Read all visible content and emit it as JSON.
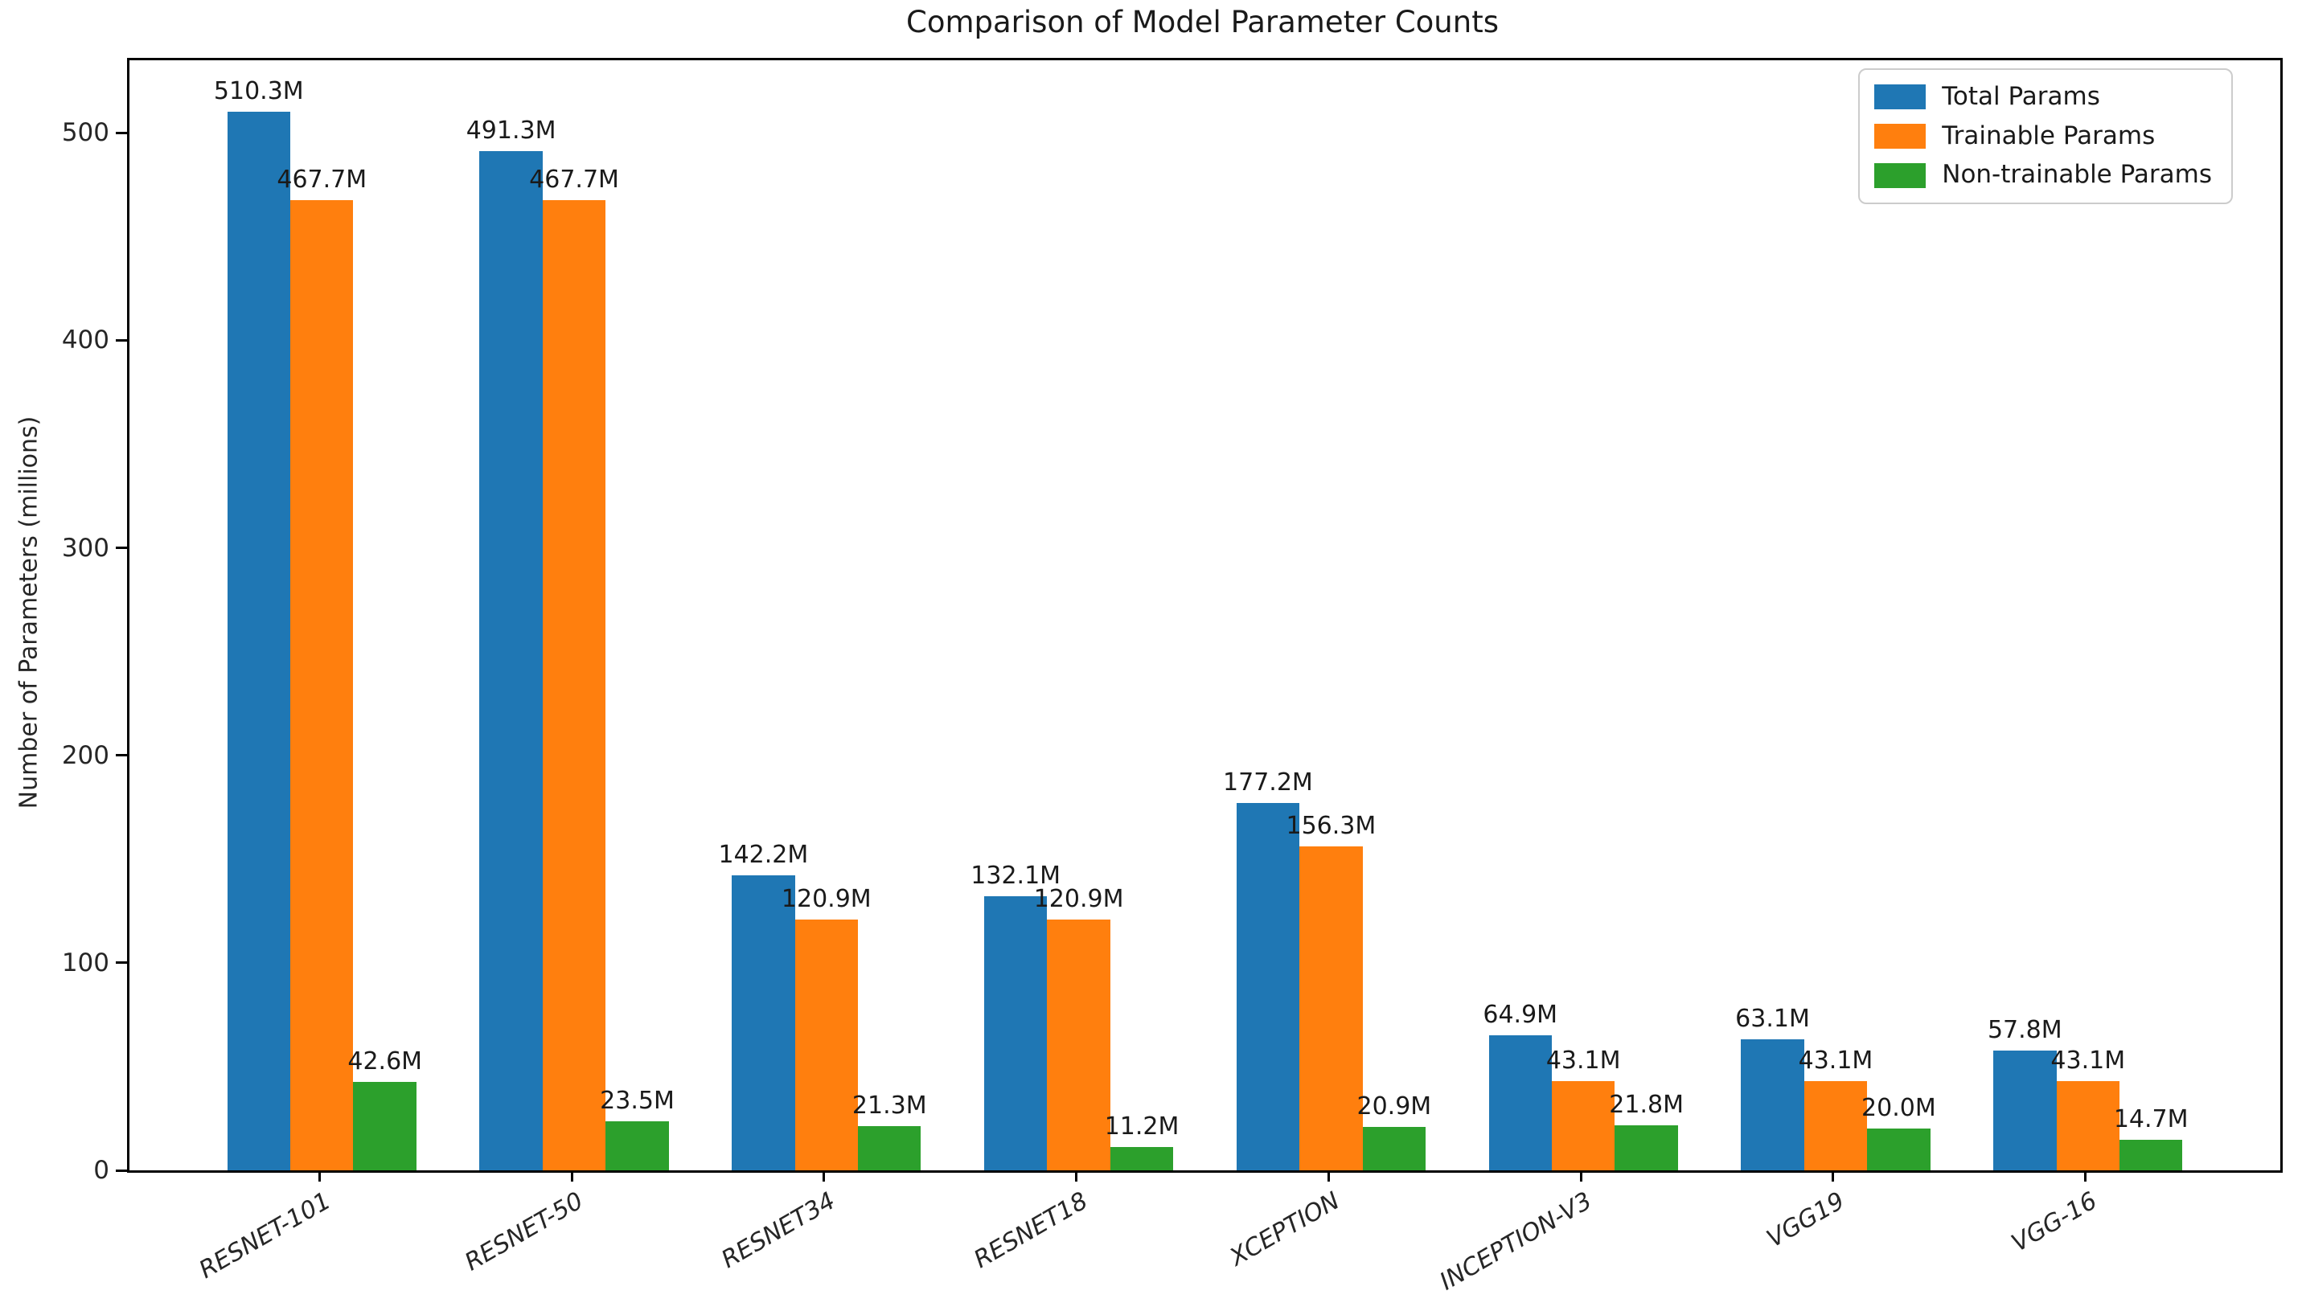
{
  "figure": {
    "background": "#ffffff"
  },
  "chart_data": {
    "type": "bar",
    "title": "Comparison of Model Parameter Counts",
    "xlabel": "",
    "ylabel": "Number of Parameters (millions)",
    "categories": [
      "RESNET-101",
      "RESNET-50",
      "RESNET34",
      "RESNET18",
      "XCEPTION",
      "INCEPTION-V3",
      "VGG19",
      "VGG-16"
    ],
    "series": [
      {
        "name": "Total Params",
        "color": "#1f77b4",
        "values": [
          510.3,
          491.3,
          142.2,
          132.1,
          177.2,
          64.9,
          63.1,
          57.8
        ],
        "labels": [
          "510.3M",
          "491.3M",
          "142.2M",
          "132.1M",
          "177.2M",
          "64.9M",
          "63.1M",
          "57.8M"
        ]
      },
      {
        "name": "Trainable Params",
        "color": "#ff7f0e",
        "values": [
          467.7,
          467.7,
          120.9,
          120.9,
          156.3,
          43.1,
          43.1,
          43.1
        ],
        "labels": [
          "467.7M",
          "467.7M",
          "120.9M",
          "120.9M",
          "156.3M",
          "43.1M",
          "43.1M",
          "43.1M"
        ]
      },
      {
        "name": "Non-trainable Params",
        "color": "#2ca02c",
        "values": [
          42.6,
          23.5,
          21.3,
          11.2,
          20.9,
          21.8,
          20.0,
          14.7
        ],
        "labels": [
          "42.6M",
          "23.5M",
          "21.3M",
          "11.2M",
          "20.9M",
          "21.8M",
          "20.0M",
          "14.7M"
        ]
      }
    ],
    "y_ticks": [
      0,
      100,
      200,
      300,
      400,
      500
    ],
    "ylim": [
      0,
      535
    ],
    "grid": false,
    "legend_position": "upper right",
    "x_tick_rotation_deg": 30,
    "x_tick_style": "italic",
    "spine_color": "#000000",
    "text_color": "#262626"
  }
}
